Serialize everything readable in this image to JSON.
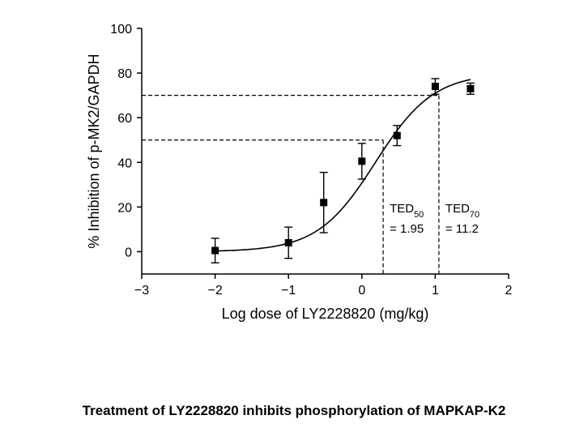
{
  "chart_data": {
    "type": "scatter",
    "xlabel": "Log dose of LY2228820 (mg/kg)",
    "ylabel": "% Inhibition of p-MK2/GAPDH",
    "xlim": [
      -3,
      2
    ],
    "ylim": [
      -10,
      100
    ],
    "xticks": [
      -3,
      -2,
      -1,
      0,
      1,
      2
    ],
    "yticks": [
      0,
      20,
      40,
      60,
      80,
      100
    ],
    "xtick_labels": [
      "−3",
      "−2",
      "−1",
      "0",
      "1",
      "2"
    ],
    "ytick_labels": [
      "0",
      "20",
      "40",
      "60",
      "80",
      "100"
    ],
    "points": [
      {
        "x": -2.0,
        "y": 0.5,
        "err": 5.5
      },
      {
        "x": -1.0,
        "y": 4.0,
        "err": 7.0
      },
      {
        "x": -0.52,
        "y": 22.0,
        "err": 13.5
      },
      {
        "x": 0.0,
        "y": 40.5,
        "err": 8.0
      },
      {
        "x": 0.48,
        "y": 52.0,
        "err": 4.5
      },
      {
        "x": 1.0,
        "y": 74.0,
        "err": 3.5
      },
      {
        "x": 1.48,
        "y": 73.0,
        "err": 2.5
      }
    ],
    "fit_curve": {
      "bottom": 0,
      "top": 80,
      "log_ec50": 0.185,
      "hill_slope": 1.1,
      "x_range": [
        -2.0,
        1.48
      ]
    },
    "reference_lines": [
      {
        "y": 50,
        "x": 0.29
      },
      {
        "y": 70,
        "x": 1.05
      }
    ],
    "annotations": [
      {
        "label": "TED",
        "sub": "50",
        "value_text": "= 1.95",
        "x": 0.29
      },
      {
        "label": "TED",
        "sub": "70",
        "value_text": "= 11.2",
        "x": 1.05
      }
    ]
  },
  "caption": "Treatment of LY2228820 inhibits phosphorylation of MAPKAP-K2"
}
